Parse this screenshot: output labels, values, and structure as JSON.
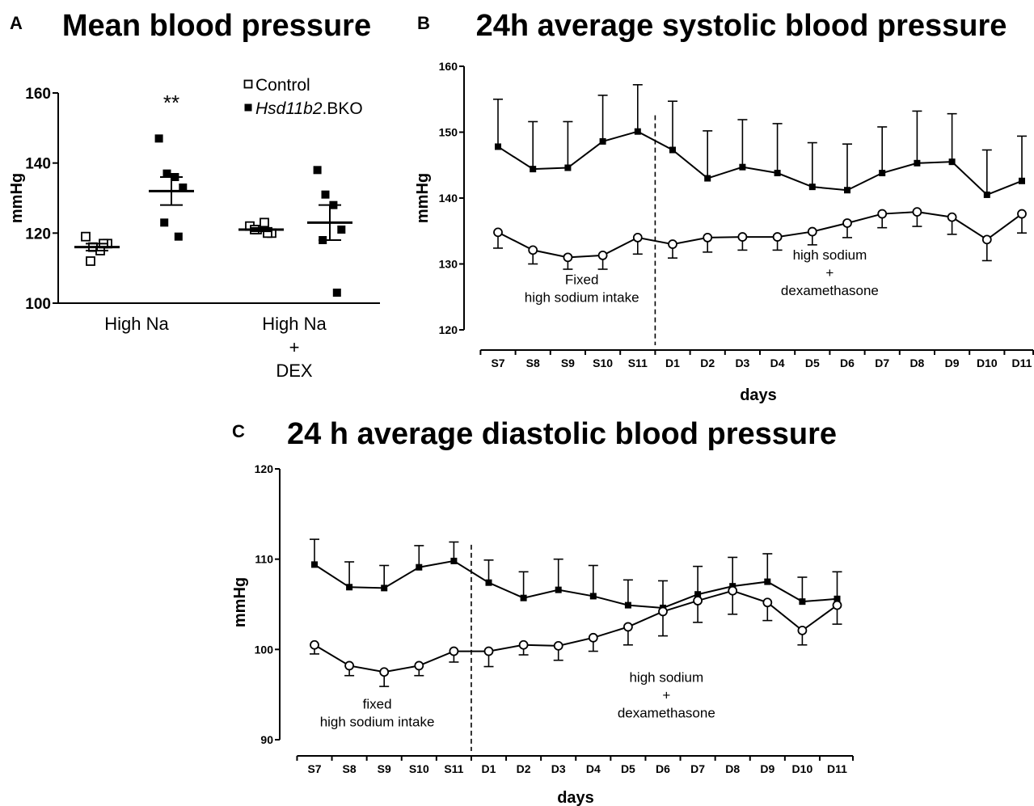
{
  "panels": {
    "a_letter": "A",
    "b_letter": "B",
    "c_letter": "C"
  },
  "chart_data": [
    {
      "id": "A",
      "type": "scatter",
      "title": "Mean blood pressure",
      "ylabel": "mmHg",
      "ylim": [
        100,
        160
      ],
      "yticks": [
        100,
        120,
        140,
        160
      ],
      "categories": [
        "High Na",
        "High Na\n+\nDEX"
      ],
      "legend": [
        {
          "name": "Control",
          "marker": "open-square"
        },
        {
          "name_italic": "Hsd11b2",
          "name_rest": ".BKO",
          "marker": "filled-square"
        }
      ],
      "annotation": "**",
      "groups": [
        {
          "category": 0,
          "series": "Control",
          "points": [
            119,
            116,
            115,
            117,
            112,
            117
          ],
          "mean": 116,
          "sem": 1
        },
        {
          "category": 0,
          "series": "Hsd11b2.BKO",
          "points": [
            147,
            137,
            136,
            133,
            123,
            119
          ],
          "mean": 132,
          "sem": 4
        },
        {
          "category": 1,
          "series": "Control",
          "points": [
            122,
            121,
            123,
            120,
            121,
            120
          ],
          "mean": 121,
          "sem": 0.5
        },
        {
          "category": 1,
          "series": "Hsd11b2.BKO",
          "points": [
            138,
            131,
            128,
            121,
            118,
            103
          ],
          "mean": 123,
          "sem": 5
        }
      ]
    },
    {
      "id": "B",
      "type": "line",
      "title": "24h average systolic blood pressure",
      "ylabel": "mmHg",
      "xlabel": "days",
      "ylim": [
        120,
        160
      ],
      "yticks": [
        120,
        130,
        140,
        150,
        160
      ],
      "categories": [
        "S7",
        "S8",
        "S9",
        "S10",
        "S11",
        "D1",
        "D2",
        "D3",
        "D4",
        "D5",
        "D6",
        "D7",
        "D8",
        "D9",
        "D10",
        "D11"
      ],
      "divider_after": "S11",
      "notes": [
        {
          "lines": [
            "Fixed",
            "high sodium intake"
          ],
          "at_index": 2.4,
          "y": 125
        },
        {
          "lines": [
            "high sodium",
            "+",
            "dexamethasone"
          ],
          "at_index": 9.5,
          "y": 126
        }
      ],
      "series": [
        {
          "name": "Hsd11b2.BKO",
          "marker": "filled-square",
          "error_dir": "up",
          "values": [
            147.8,
            144.4,
            144.6,
            148.6,
            150.1,
            147.3,
            143.0,
            144.7,
            143.8,
            141.7,
            141.2,
            143.8,
            145.3,
            145.5,
            140.5,
            142.6
          ],
          "errors": [
            7.2,
            7.2,
            7.0,
            7.0,
            7.1,
            7.4,
            7.2,
            7.2,
            7.5,
            6.7,
            7.0,
            7.0,
            7.9,
            7.3,
            6.8,
            6.8
          ]
        },
        {
          "name": "Control",
          "marker": "open-circle",
          "error_dir": "down",
          "values": [
            134.8,
            132.1,
            131.0,
            131.3,
            134.0,
            133.0,
            134.0,
            134.1,
            134.1,
            134.9,
            136.2,
            137.6,
            137.9,
            137.1,
            133.7,
            137.6
          ],
          "errors": [
            2.4,
            2.1,
            1.8,
            2.1,
            2.5,
            2.1,
            2.2,
            2.0,
            2.0,
            2.0,
            2.2,
            2.1,
            2.2,
            2.6,
            3.2,
            2.9
          ]
        }
      ]
    },
    {
      "id": "C",
      "type": "line",
      "title": "24 h average diastolic blood pressure",
      "ylabel": "mmHg",
      "xlabel": "days",
      "ylim": [
        90,
        120
      ],
      "yticks": [
        90,
        100,
        110,
        120
      ],
      "categories": [
        "S7",
        "S8",
        "S9",
        "S10",
        "S11",
        "D1",
        "D2",
        "D3",
        "D4",
        "D5",
        "D6",
        "D7",
        "D8",
        "D9",
        "D10",
        "D11"
      ],
      "divider_after": "S11",
      "notes": [
        {
          "lines": [
            "fixed",
            "high sodium intake"
          ],
          "at_index": 1.8,
          "y": 92
        },
        {
          "lines": [
            "high sodium",
            "+",
            "dexamethasone"
          ],
          "at_index": 10.1,
          "y": 93
        }
      ],
      "series": [
        {
          "name": "Hsd11b2.BKO",
          "marker": "filled-square",
          "error_dir": "up",
          "values": [
            109.4,
            106.9,
            106.8,
            109.1,
            109.8,
            107.4,
            105.7,
            106.6,
            105.9,
            104.9,
            104.6,
            106.1,
            107.0,
            107.5,
            105.3,
            105.6
          ],
          "errors": [
            2.8,
            2.8,
            2.5,
            2.4,
            2.1,
            2.5,
            2.9,
            3.4,
            3.4,
            2.8,
            3.0,
            3.1,
            3.2,
            3.1,
            2.7,
            3.0
          ]
        },
        {
          "name": "Control",
          "marker": "open-circle",
          "error_dir": "down",
          "values": [
            100.5,
            98.2,
            97.5,
            98.2,
            99.8,
            99.8,
            100.5,
            100.4,
            101.3,
            102.5,
            104.2,
            105.4,
            106.5,
            105.2,
            102.1,
            104.9
          ],
          "errors": [
            1.0,
            1.1,
            1.6,
            1.1,
            1.2,
            1.7,
            1.1,
            1.6,
            1.5,
            2.0,
            2.7,
            2.4,
            2.6,
            2.0,
            1.6,
            2.1
          ]
        }
      ]
    }
  ]
}
